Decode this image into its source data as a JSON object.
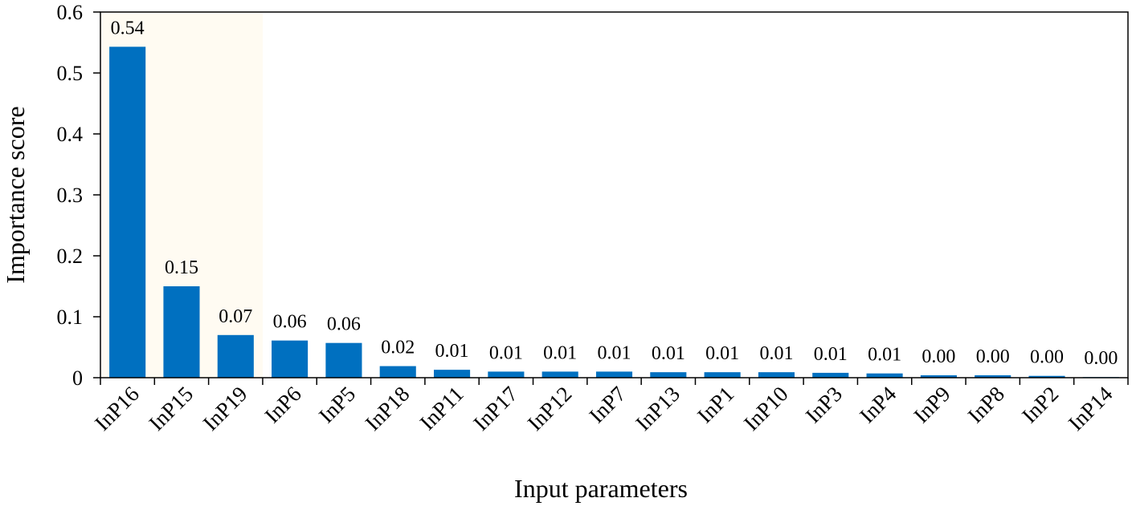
{
  "chart_data": {
    "type": "bar",
    "title": "",
    "xlabel": "Input parameters",
    "ylabel": "Importance score",
    "ylim": [
      0,
      0.6
    ],
    "yticks": [
      "0",
      "0.1",
      "0.2",
      "0.3",
      "0.4",
      "0.5",
      "0.6"
    ],
    "categories": [
      "InP16",
      "InP15",
      "InP19",
      "InP6",
      "InP5",
      "InP18",
      "InP11",
      "InP17",
      "InP12",
      "InP7",
      "InP13",
      "InP1",
      "InP10",
      "InP3",
      "InP4",
      "InP9",
      "InP8",
      "InP2",
      "InP14"
    ],
    "values": [
      0.543,
      0.15,
      0.07,
      0.061,
      0.057,
      0.019,
      0.013,
      0.01,
      0.01,
      0.01,
      0.009,
      0.009,
      0.009,
      0.008,
      0.007,
      0.004,
      0.004,
      0.003,
      0.001
    ],
    "value_labels": [
      "0.54",
      "0.15",
      "0.07",
      "0.06",
      "0.06",
      "0.02",
      "0.01",
      "0.01",
      "0.01",
      "0.01",
      "0.01",
      "0.01",
      "0.01",
      "0.01",
      "0.01",
      "0.00",
      "0.00",
      "0.00",
      "0.00"
    ],
    "highlight_categories": [
      "InP16",
      "InP15",
      "InP19"
    ],
    "bar_color": "#0070c0",
    "highlight_color": "#fffbf2",
    "grid": false,
    "legend": "none"
  }
}
